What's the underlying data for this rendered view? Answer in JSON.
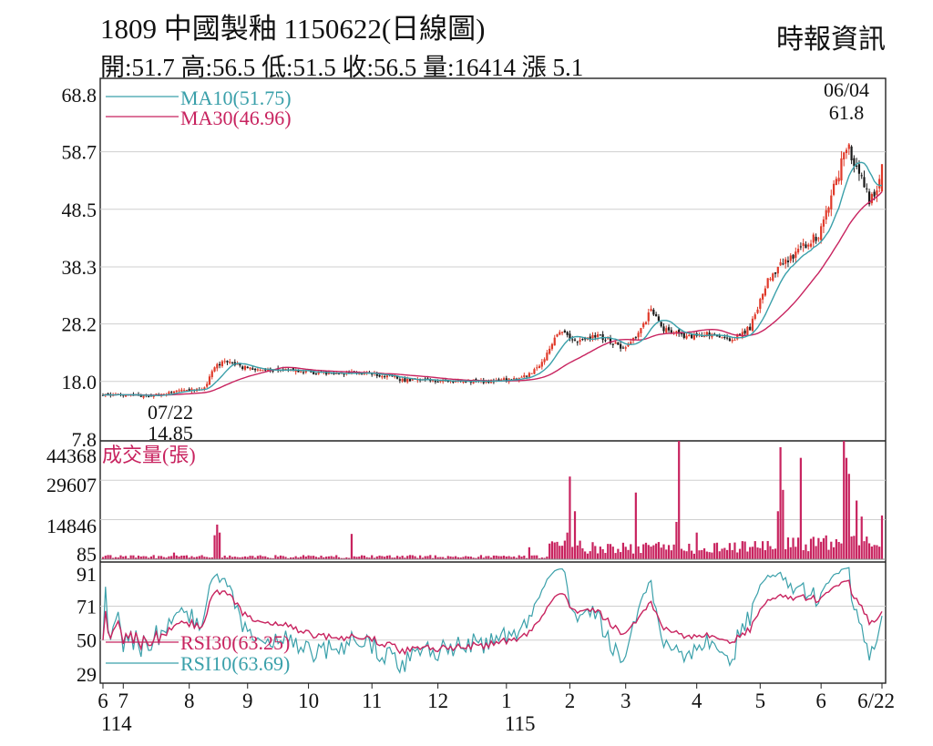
{
  "header": {
    "title": "1809  中國製釉 1150622(日線圖)",
    "stats": "開:51.7 高:56.5 低:51.5 收:56.5 量:16414 漲 5.1",
    "source": "時報資訊"
  },
  "colors": {
    "up": "#e03a2a",
    "down": "#1a1a1a",
    "ma10": "#3aa0aa",
    "ma30": "#c8235f",
    "volume": "#c8235f",
    "rsi30": "#c8235f",
    "rsi10": "#3aa0aa",
    "grid": "#cfcfcf"
  },
  "chart_data": [
    {
      "type": "candlestick",
      "panel": "price",
      "ylim": [
        7.8,
        68.8
      ],
      "y_ticks": [
        "68.8",
        "58.7",
        "48.5",
        "38.3",
        "28.2",
        "18.0",
        "7.8"
      ],
      "legend": [
        {
          "label": "MA10(51.75)",
          "series": "MA10",
          "value": 51.75
        },
        {
          "label": "MA30(46.96)",
          "series": "MA30",
          "value": 46.96
        }
      ],
      "annotations": [
        {
          "date": "06/04",
          "value_label": "61.8",
          "kind": "high",
          "value": 61.8
        },
        {
          "date": "07/22",
          "value_label": "14.85",
          "kind": "low",
          "value": 14.85
        }
      ],
      "last_bar": {
        "open": 51.7,
        "high": 56.5,
        "low": 51.5,
        "close": 56.5
      },
      "close_anchors": [
        [
          0,
          15.6
        ],
        [
          20,
          15.5
        ],
        [
          28,
          16.2
        ],
        [
          40,
          16.8
        ],
        [
          44,
          20.5
        ],
        [
          48,
          21.5
        ],
        [
          55,
          20.5
        ],
        [
          70,
          20.0
        ],
        [
          90,
          19.4
        ],
        [
          105,
          19.5
        ],
        [
          120,
          18.2
        ],
        [
          130,
          18.2
        ],
        [
          150,
          18.0
        ],
        [
          165,
          18.5
        ],
        [
          172,
          20.5
        ],
        [
          180,
          27.0
        ],
        [
          186,
          25.0
        ],
        [
          195,
          26.0
        ],
        [
          205,
          24.0
        ],
        [
          212,
          27.0
        ],
        [
          216,
          31.0
        ],
        [
          220,
          27.5
        ],
        [
          230,
          26.0
        ],
        [
          240,
          26.5
        ],
        [
          248,
          25.5
        ],
        [
          255,
          27.5
        ],
        [
          262,
          36.0
        ],
        [
          268,
          39.0
        ],
        [
          275,
          41.5
        ],
        [
          282,
          44.0
        ],
        [
          290,
          55.0
        ],
        [
          293,
          60.0
        ],
        [
          298,
          55.0
        ],
        [
          302,
          50.0
        ],
        [
          305,
          52.0
        ],
        [
          307,
          56.5
        ]
      ]
    },
    {
      "type": "bar",
      "panel": "volume",
      "title": "成交量(張)",
      "ylim": [
        0,
        44368
      ],
      "y_ticks": [
        "44368",
        "29607",
        "14846",
        "85"
      ],
      "spikes": [
        [
          28,
          2500
        ],
        [
          44,
          9000
        ],
        [
          45,
          13000
        ],
        [
          46,
          10000
        ],
        [
          98,
          9500
        ],
        [
          168,
          4500
        ],
        [
          183,
          10000
        ],
        [
          184,
          31000
        ],
        [
          186,
          18000
        ],
        [
          210,
          25000
        ],
        [
          226,
          14000
        ],
        [
          227,
          44368
        ],
        [
          234,
          10000
        ],
        [
          266,
          18000
        ],
        [
          267,
          42000
        ],
        [
          268,
          26000
        ],
        [
          275,
          38000
        ],
        [
          292,
          44368
        ],
        [
          293,
          38000
        ],
        [
          294,
          32000
        ],
        [
          297,
          22000
        ],
        [
          299,
          16000
        ]
      ]
    },
    {
      "type": "line",
      "panel": "rsi",
      "ylim": [
        29,
        91
      ],
      "y_ticks": [
        "91",
        "71",
        "50",
        "29"
      ],
      "legend": [
        {
          "label": "RSI30(63.25)",
          "series": "RSI30",
          "value": 63.25
        },
        {
          "label": "RSI10(63.69)",
          "series": "RSI10",
          "value": 63.69
        }
      ]
    },
    {
      "type": "axis",
      "x_month_labels": [
        {
          "label": "6",
          "year": "114",
          "day": 0
        },
        {
          "label": "7",
          "day": 8
        },
        {
          "label": "8",
          "day": 34
        },
        {
          "label": "9",
          "day": 57
        },
        {
          "label": "10",
          "day": 81
        },
        {
          "label": "11",
          "day": 106
        },
        {
          "label": "12",
          "day": 132
        },
        {
          "label": "1",
          "year": "115",
          "day": 159
        },
        {
          "label": "2",
          "day": 184
        },
        {
          "label": "3",
          "day": 206
        },
        {
          "label": "4",
          "day": 234
        },
        {
          "label": "5",
          "day": 259
        },
        {
          "label": "6",
          "day": 283
        },
        {
          "label": "6/22",
          "day": 307
        }
      ]
    }
  ]
}
